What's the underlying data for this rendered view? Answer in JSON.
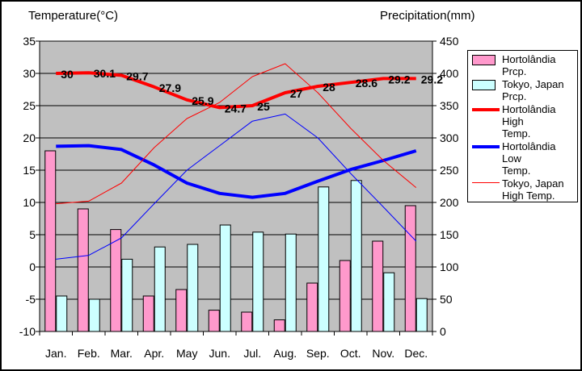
{
  "chart_data": {
    "type": "bar+line combo climate chart",
    "categories": [
      "Jan.",
      "Feb.",
      "Mar.",
      "Apr.",
      "May",
      "Jun.",
      "Jul.",
      "Aug.",
      "Sep.",
      "Oct.",
      "Nov.",
      "Dec."
    ],
    "temp_axis": {
      "title": "Temperature(°C)",
      "min": -10,
      "max": 35,
      "step": 5,
      "tick_labels": [
        35,
        30,
        25,
        20,
        15,
        10,
        5,
        0,
        -5,
        -10
      ]
    },
    "precip_axis": {
      "title": "Precipitation(mm)",
      "min": 0,
      "max": 450,
      "step": 50,
      "tick_labels": [
        450,
        400,
        350,
        300,
        250,
        200,
        150,
        100,
        50,
        0
      ]
    },
    "plot_bg": "#c0c0c0",
    "grid_color": "#000000",
    "legend_position": "right",
    "series": [
      {
        "name": "Hortolândia Prcp.",
        "legend_label": "Hortolândia\nPrcp.",
        "type": "bar",
        "axis": "precip",
        "color": "#ff99cc",
        "values": [
          280,
          190,
          158,
          55,
          65,
          33,
          30,
          18,
          75,
          110,
          140,
          195
        ]
      },
      {
        "name": "Tokyo, Japan Prcp.",
        "legend_label": "Tokyo, Japan\nPrcp.",
        "type": "bar",
        "axis": "precip",
        "color": "#ccffff",
        "values": [
          55,
          50,
          112,
          131,
          135,
          165,
          154,
          151,
          224,
          234,
          91,
          51
        ]
      },
      {
        "name": "Hortolândia High Temp.",
        "legend_label": "Hortolândia High\nTemp.",
        "type": "line",
        "axis": "temp",
        "color": "#ff0000",
        "line_width": 4,
        "values": [
          30,
          30.1,
          29.7,
          27.9,
          25.9,
          24.7,
          25,
          27,
          28,
          28.6,
          29.2,
          29.2
        ],
        "point_labels": [
          "30",
          "30.1",
          "29.7",
          "27.9",
          "25.9",
          "24.7",
          "25",
          "27",
          "28",
          "28.6",
          "29.2",
          "29.2"
        ]
      },
      {
        "name": "Hortolândia Low Temp.",
        "legend_label": "Hortolândia Low\nTemp.",
        "type": "line",
        "axis": "temp",
        "color": "#0000ff",
        "line_width": 4,
        "values": [
          18.7,
          18.8,
          18.2,
          15.8,
          13.0,
          11.4,
          10.8,
          11.4,
          13.3,
          15.1,
          16.5,
          18.0
        ]
      },
      {
        "name": "Tokyo, Japan High Temp.",
        "legend_label": "Tokyo, Japan\nHigh Temp.",
        "type": "line",
        "axis": "temp",
        "color": "#ff0000",
        "line_width": 1,
        "values": [
          9.8,
          10.2,
          13.0,
          18.5,
          23.0,
          25.5,
          29.5,
          31.5,
          27.0,
          21.5,
          16.5,
          12.3
        ]
      },
      {
        "name": "Tokyo, Japan Low Temp.",
        "legend_label": "Tokyo, Japan\nLow Temp.",
        "type": "line",
        "axis": "temp",
        "color": "#0000ff",
        "line_width": 1,
        "values": [
          1.2,
          1.8,
          4.5,
          9.8,
          15.0,
          18.8,
          22.6,
          23.7,
          20.0,
          14.5,
          9.3,
          4.0
        ]
      }
    ]
  }
}
